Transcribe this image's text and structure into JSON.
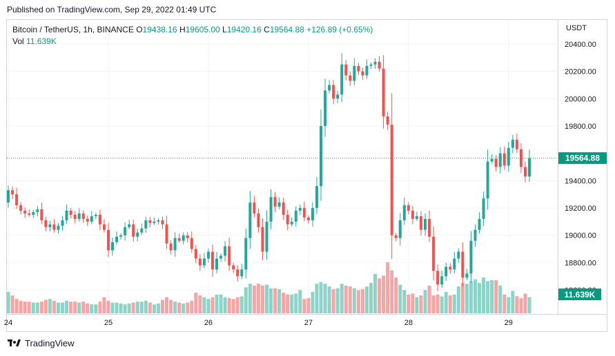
{
  "header": {
    "published": "Published on TradingView.com, Sep 29, 2022 01:49 UTC"
  },
  "legend": {
    "symbol": "Bitcoin / TetherUS, 1h, BINANCE",
    "open_label": "O",
    "open": "19438.16",
    "high_label": "H",
    "high": "19605.00",
    "low_label": "L",
    "low": "19420.16",
    "close_label": "C",
    "close": "19564.88",
    "change": "+126.89 (+0.65%)",
    "vol_label": "Vol",
    "vol": "11.639K"
  },
  "axis": {
    "currency": "USDT"
  },
  "brand": {
    "name": "TradingView"
  },
  "colors": {
    "up": "#26a69a",
    "down": "#ef5350",
    "up_vol": "#8fd2c8",
    "down_vol": "#f5a5a3",
    "grid": "#f0f3fa",
    "price_tag": "#089981"
  },
  "chart_data": {
    "type": "candlestick",
    "y_ticks": [
      18600,
      18800,
      19000,
      19200,
      19400,
      19600,
      19800,
      20000,
      20200,
      20400
    ],
    "y_tick_labels": [
      "18600.00",
      "18800.00",
      "19000.00",
      "19200.00",
      "19400.00",
      "",
      "19800.00",
      "20000.00",
      "20200.00",
      "20400.00"
    ],
    "ylim": [
      18530,
      20470
    ],
    "x_labels": [
      "24",
      "25",
      "26",
      "27",
      "28",
      "29"
    ],
    "x_label_index": [
      0,
      24,
      48,
      72,
      96,
      120
    ],
    "last_price": 19564.88,
    "last_price_label": "19564.88",
    "last_volume_label": "11.639K",
    "closes": [
      19330,
      19300,
      19220,
      19180,
      19160,
      19150,
      19170,
      19190,
      19110,
      19060,
      19080,
      19040,
      19070,
      19110,
      19180,
      19150,
      19120,
      19160,
      19120,
      19100,
      19140,
      19150,
      19080,
      19040,
      18890,
      18950,
      18990,
      19000,
      19060,
      19080,
      18990,
      19020,
      19050,
      19110,
      19090,
      19100,
      19110,
      19080,
      18940,
      18890,
      18980,
      18960,
      19000,
      18980,
      18900,
      18830,
      18780,
      18830,
      18880,
      18750,
      18830,
      18850,
      18920,
      18780,
      18750,
      18700,
      18750,
      18980,
      19240,
      19160,
      19060,
      18880,
      19100,
      19280,
      19210,
      19240,
      19150,
      19080,
      19100,
      19180,
      19200,
      19130,
      19110,
      19200,
      19360,
      19800,
      20060,
      20100,
      20000,
      20030,
      20250,
      20170,
      20130,
      20240,
      20200,
      20170,
      20240,
      20250,
      20270,
      20220,
      19870,
      19810,
      19000,
      18980,
      19110,
      19220,
      19180,
      19120,
      19140,
      19040,
      19120,
      18990,
      18740,
      18640,
      18700,
      18770,
      18750,
      18830,
      18880,
      18690,
      18720,
      18960,
      19040,
      19120,
      19270,
      19540,
      19560,
      19500,
      19600,
      19510,
      19640,
      19700,
      19630,
      19500,
      19430,
      19565
    ],
    "volumes": [
      2.4,
      2.0,
      1.6,
      1.4,
      1.3,
      1.3,
      1.2,
      1.2,
      1.3,
      1.5,
      1.6,
      1.4,
      1.2,
      1.2,
      1.4,
      1.3,
      1.3,
      1.2,
      1.3,
      1.1,
      1.0,
      1.0,
      1.3,
      1.8,
      1.4,
      1.2,
      1.2,
      1.1,
      1.0,
      1.1,
      1.2,
      1.3,
      1.3,
      1.4,
      1.2,
      1.0,
      1.1,
      1.5,
      1.8,
      1.5,
      1.3,
      1.2,
      1.1,
      1.2,
      1.4,
      2.3,
      2.0,
      1.8,
      1.6,
      1.8,
      2.1,
      2.1,
      1.8,
      1.7,
      1.6,
      1.8,
      1.9,
      2.9,
      3.3,
      3.1,
      3.3,
      3.1,
      3.2,
      2.8,
      2.8,
      2.7,
      2.3,
      2.1,
      2.1,
      2.2,
      2.6,
      1.6,
      1.7,
      2.4,
      3.3,
      3.5,
      3.3,
      3.0,
      2.7,
      2.8,
      3.3,
      3.1,
      3.0,
      2.8,
      2.6,
      2.7,
      3.0,
      3.4,
      4.4,
      3.9,
      4.2,
      5.7,
      4.8,
      4.0,
      3.2,
      2.6,
      2.1,
      2.2,
      1.8,
      2.0,
      2.6,
      3.1,
      2.0,
      2.1,
      1.9,
      2.4,
      2.0,
      2.1,
      3.0,
      3.4,
      3.3,
      3.6,
      3.8,
      3.4,
      4.0,
      3.6,
      3.7,
      3.7,
      3.1,
      2.1,
      1.8,
      2.5,
      1.9,
      1.7,
      2.2,
      1.8
    ]
  }
}
